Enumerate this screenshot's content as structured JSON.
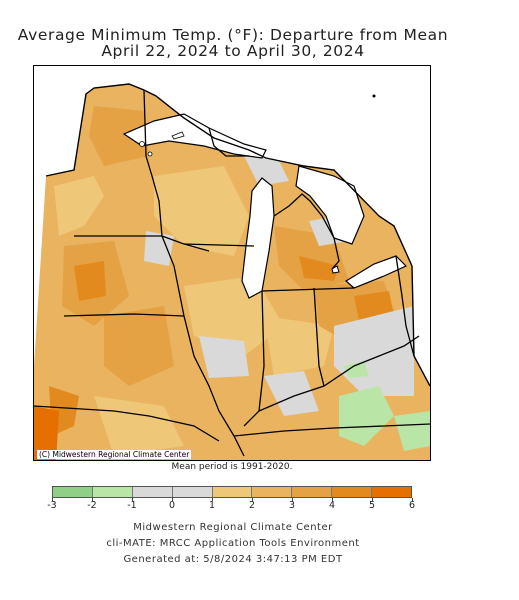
{
  "title_line1": "Average Minimum Temp. (°F): Departure from Mean",
  "title_line2": "April 22, 2024 to April 30, 2024",
  "map_credit": "(C) Midwestern Regional Climate Center",
  "mean_period": "Mean period is 1991-2020.",
  "legend": {
    "bins": [
      {
        "from": -3,
        "to": -2,
        "color": "#8fcf86"
      },
      {
        "from": -2,
        "to": -1,
        "color": "#b9e6a6"
      },
      {
        "from": -1,
        "to": 0,
        "color": "#d9d9d9"
      },
      {
        "from": 0,
        "to": 1,
        "color": "#d9d9d9"
      },
      {
        "from": 1,
        "to": 2,
        "color": "#eec878"
      },
      {
        "from": 2,
        "to": 3,
        "color": "#e9b35f"
      },
      {
        "from": 3,
        "to": 4,
        "color": "#e4a245"
      },
      {
        "from": 4,
        "to": 5,
        "color": "#e38a1f"
      },
      {
        "from": 5,
        "to": 6,
        "color": "#e56f00"
      }
    ],
    "ticks": [
      "-3",
      "-2",
      "-1",
      "0",
      "1",
      "2",
      "3",
      "4",
      "5",
      "6"
    ]
  },
  "colors": {
    "base_warm": "#e9b35f",
    "light_warm": "#eec878",
    "mid_warm": "#e4a245",
    "strong_warm": "#e38a1f",
    "max_warm": "#e56f00",
    "neutral": "#d9d9d9",
    "cool": "#b9e6a6",
    "lake": "#ffffff",
    "boundary": "#000000"
  },
  "footer": {
    "line1": "Midwestern Regional Climate Center",
    "line2": "cli-MATE: MRCC Application Tools Environment",
    "line3": "Generated at: 5/8/2024 3:47:13 PM EDT"
  }
}
